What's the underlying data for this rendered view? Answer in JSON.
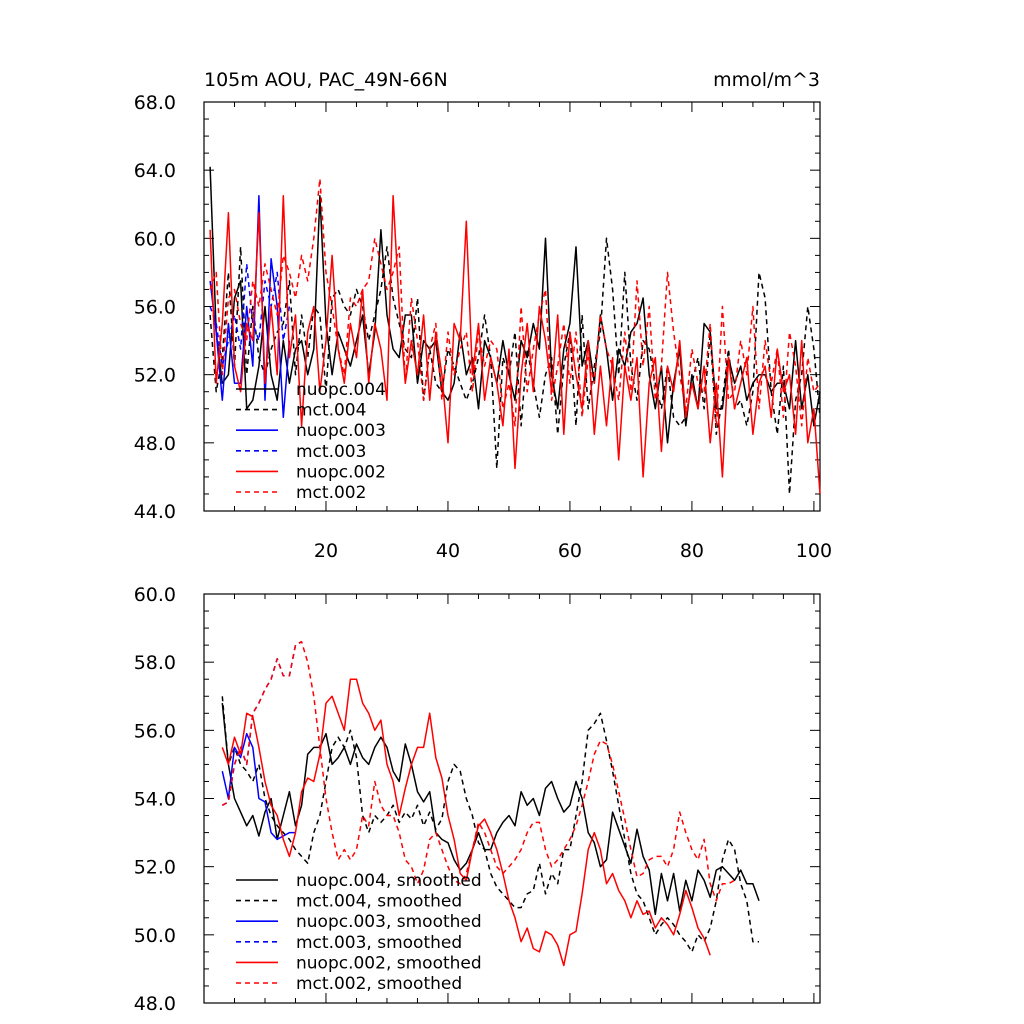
{
  "chart_data": [
    {
      "type": "line",
      "title": "105m AOU, PAC_49N-66N",
      "units": "mmol/m^3",
      "xlim": [
        0,
        101
      ],
      "ylim": [
        44,
        68
      ],
      "xticks": [
        20,
        40,
        60,
        80,
        100
      ],
      "xtick_labels": [
        "20",
        "40",
        "60",
        "80",
        "100"
      ],
      "yticks": [
        44,
        48,
        52,
        56,
        60,
        64,
        68
      ],
      "ytick_labels": [
        "44.0",
        "48.0",
        "52.0",
        "56.0",
        "60.0",
        "64.0",
        "68.0"
      ],
      "legend_position": "lower-left",
      "series": [
        {
          "name": "nuopc.004",
          "color": "#000000",
          "dash": "solid",
          "x_start": 1,
          "values": [
            64.2,
            54.5,
            51.5,
            52.0,
            56.5,
            57.5,
            50.0,
            50.5,
            52.5,
            56.0,
            52.0,
            50.5,
            54.0,
            51.5,
            53.5,
            54.0,
            52.0,
            53.5,
            62.5,
            55.0,
            52.0,
            54.5,
            53.5,
            52.5,
            54.0,
            55.5,
            52.0,
            54.5,
            60.5,
            55.5,
            53.5,
            53.0,
            55.5,
            55.5,
            51.5,
            54.0,
            53.5,
            54.0,
            51.0,
            50.5,
            51.5,
            54.5,
            52.0,
            53.0,
            50.0,
            54.0,
            53.0,
            51.5,
            54.0,
            52.0,
            50.5,
            54.0,
            53.0,
            55.0,
            53.5,
            60.0,
            52.0,
            50.0,
            53.5,
            55.0,
            59.5,
            52.5,
            54.0,
            51.5,
            55.5,
            53.5,
            50.5,
            53.5,
            52.5,
            54.5,
            55.0,
            56.5,
            52.0,
            50.0,
            52.5,
            48.0,
            51.5,
            53.5,
            49.0,
            52.0,
            50.0,
            55.0,
            54.5,
            50.0,
            50.0,
            53.0,
            51.5,
            52.5,
            50.5,
            51.5,
            52.0,
            52.0,
            51.0,
            51.5,
            51.5,
            50.0,
            54.0,
            50.0,
            52.0,
            49.0,
            51.0
          ]
        },
        {
          "name": "mct.004",
          "color": "#000000",
          "dash": "dashed",
          "x_start": 1,
          "values": [
            55.5,
            51.0,
            53.0,
            58.0,
            52.5,
            59.5,
            52.0,
            56.0,
            53.0,
            52.0,
            53.5,
            54.5,
            55.0,
            57.5,
            52.0,
            55.5,
            53.0,
            56.0,
            55.5,
            51.0,
            56.5,
            57.0,
            56.0,
            55.5,
            57.0,
            56.0,
            54.0,
            55.5,
            57.0,
            59.5,
            56.5,
            55.0,
            53.5,
            53.0,
            56.5,
            50.5,
            53.5,
            51.5,
            51.0,
            53.5,
            52.5,
            51.5,
            50.5,
            51.5,
            53.0,
            55.5,
            53.0,
            46.5,
            53.0,
            52.0,
            54.5,
            49.0,
            53.5,
            51.5,
            49.5,
            52.0,
            53.0,
            48.5,
            52.5,
            54.5,
            49.0,
            55.5,
            50.0,
            52.5,
            54.5,
            60.0,
            57.0,
            52.0,
            58.0,
            52.5,
            50.5,
            54.0,
            53.5,
            51.5,
            50.0,
            52.5,
            49.5,
            49.0,
            49.5,
            51.5,
            53.0,
            50.0,
            54.5,
            48.5,
            50.5,
            53.5,
            50.0,
            50.5,
            49.0,
            51.0,
            58.0,
            56.5,
            51.0,
            48.5,
            52.5,
            45.0,
            50.5,
            52.0,
            56.0,
            53.5,
            49.5
          ]
        },
        {
          "name": "nuopc.003",
          "color": "#0000ff",
          "dash": "solid",
          "x_start": 1,
          "values": [
            57.5,
            54.5,
            50.5,
            55.0,
            51.5,
            51.5,
            56.0,
            52.5,
            62.5,
            50.5,
            58.8,
            56.0,
            49.5,
            54.0
          ]
        },
        {
          "name": "mct.003",
          "color": "#0000ff",
          "dash": "dashed",
          "x_start": 1,
          "values": [
            56.0,
            55.0,
            52.5,
            54.0,
            55.5,
            53.5,
            58.5,
            55.0,
            54.0,
            57.5,
            56.0,
            58.0,
            54.0,
            56.0
          ]
        },
        {
          "name": "nuopc.002",
          "color": "#ff0000",
          "dash": "solid",
          "x_start": 1,
          "values": [
            60.5,
            51.5,
            55.0,
            61.5,
            52.5,
            51.0,
            55.0,
            54.0,
            61.5,
            51.5,
            56.0,
            52.0,
            62.5,
            53.0,
            55.5,
            49.0,
            54.5,
            56.0,
            51.0,
            54.0,
            59.0,
            53.5,
            51.5,
            55.0,
            53.0,
            57.0,
            51.5,
            55.0,
            53.5,
            50.5,
            62.5,
            56.0,
            51.5,
            54.0,
            52.0,
            55.5,
            50.5,
            54.5,
            52.0,
            48.0,
            55.0,
            54.0,
            61.0,
            52.0,
            55.0,
            50.5,
            53.0,
            51.5,
            49.0,
            53.5,
            46.5,
            52.0,
            55.0,
            51.0,
            56.0,
            54.0,
            51.0,
            55.5,
            48.5,
            54.5,
            52.0,
            50.0,
            54.0,
            48.5,
            52.5,
            49.0,
            53.0,
            47.0,
            52.5,
            50.5,
            53.0,
            46.0,
            51.5,
            53.0,
            47.5,
            52.5,
            51.0,
            54.0,
            49.5,
            51.5,
            50.0,
            52.5,
            48.0,
            51.5,
            46.0,
            53.0,
            50.0,
            51.5,
            53.0,
            48.5,
            51.5,
            52.5,
            49.5,
            53.5,
            51.0,
            52.0,
            48.5,
            54.0,
            48.0,
            50.0,
            45.0
          ]
        },
        {
          "name": "mct.002",
          "color": "#ff0000",
          "dash": "dashed",
          "x_start": 1,
          "values": [
            57.0,
            58.0,
            52.0,
            56.5,
            57.0,
            55.0,
            54.0,
            57.5,
            56.0,
            58.5,
            57.0,
            55.5,
            59.0,
            58.0,
            56.5,
            59.0,
            57.5,
            60.0,
            63.5,
            58.0,
            56.0,
            53.5,
            52.0,
            56.5,
            56.0,
            57.0,
            57.5,
            60.0,
            58.5,
            57.0,
            58.0,
            59.5,
            51.5,
            56.5,
            54.0,
            50.5,
            53.5,
            55.0,
            50.5,
            54.5,
            52.0,
            53.5,
            54.5,
            51.0,
            54.5,
            52.5,
            54.0,
            53.5,
            50.0,
            51.5,
            49.0,
            56.0,
            51.0,
            53.5,
            55.5,
            57.0,
            50.5,
            52.5,
            55.0,
            51.5,
            54.5,
            49.5,
            53.0,
            51.5,
            55.5,
            53.5,
            52.5,
            50.5,
            54.5,
            51.0,
            57.5,
            52.5,
            56.0,
            50.5,
            52.5,
            58.0,
            54.5,
            52.0,
            50.0,
            53.5,
            51.5,
            51.0,
            55.0,
            49.0,
            56.0,
            50.5,
            51.0,
            54.0,
            52.0,
            56.0,
            50.0,
            54.0,
            51.5,
            53.5,
            49.5,
            54.5,
            52.5,
            49.0,
            53.0,
            51.0,
            51.5
          ]
        }
      ],
      "legend": [
        "nuopc.004",
        "mct.004",
        "nuopc.003",
        "mct.003",
        "nuopc.002",
        "mct.002"
      ]
    },
    {
      "type": "line",
      "title": "",
      "xlim": [
        0,
        101
      ],
      "ylim": [
        48,
        60
      ],
      "yticks": [
        48,
        50,
        52,
        54,
        56,
        58,
        60
      ],
      "ytick_labels": [
        "48.0",
        "50.0",
        "52.0",
        "54.0",
        "56.0",
        "58.0",
        "60.0"
      ],
      "legend_position": "lower-left",
      "series": [
        {
          "name": "nuopc.004, smoothed",
          "color": "#000000",
          "dash": "solid",
          "x_start": 3,
          "values": [
            56.8,
            55.0,
            54.0,
            53.6,
            53.2,
            53.5,
            52.9,
            53.6,
            54.0,
            52.8,
            53.5,
            54.2,
            53.2,
            53.8,
            55.3,
            55.5,
            55.5,
            55.9,
            55.0,
            55.2,
            55.5,
            55.0,
            55.6,
            55.2,
            55.0,
            55.5,
            55.8,
            55.5,
            54.8,
            54.5,
            55.6,
            55.0,
            54.2,
            53.9,
            54.2,
            53.0,
            52.8,
            52.7,
            52.2,
            51.9,
            52.1,
            52.5,
            53.0,
            52.5,
            52.5,
            53.0,
            53.3,
            53.5,
            53.2,
            54.2,
            53.8,
            54.0,
            53.5,
            54.3,
            54.5,
            54.0,
            53.6,
            53.8,
            54.5,
            54.0,
            53.0,
            52.7,
            52.0,
            52.2,
            53.6,
            53.1,
            52.6,
            52.1,
            53.1,
            52.3,
            51.9,
            50.6,
            51.8,
            51.0,
            51.8,
            50.7,
            51.6,
            51.0,
            51.9,
            51.6,
            51.1,
            51.9,
            52.0,
            51.8,
            51.6,
            51.9,
            51.5,
            51.5,
            51.0
          ]
        },
        {
          "name": "mct.004, smoothed",
          "color": "#000000",
          "dash": "dashed",
          "x_start": 3,
          "values": [
            57.0,
            55.0,
            55.5,
            55.0,
            54.8,
            54.5,
            55.0,
            54.0,
            53.5,
            53.2,
            53.0,
            52.8,
            52.5,
            52.3,
            52.1,
            53.0,
            53.5,
            54.5,
            55.5,
            55.8,
            55.5,
            56.0,
            55.2,
            53.5,
            53.0,
            53.5,
            53.3,
            53.5,
            53.8,
            53.3,
            53.6,
            53.4,
            53.8,
            53.2,
            53.6,
            53.1,
            53.4,
            54.5,
            55.0,
            54.8,
            54.0,
            53.5,
            52.7,
            52.5,
            51.8,
            51.4,
            51.2,
            51.0,
            50.8,
            50.8,
            51.2,
            51.3,
            52.1,
            51.2,
            51.8,
            51.5,
            52.5,
            52.5,
            53.5,
            54.5,
            56.0,
            56.2,
            56.5,
            55.7,
            54.8,
            53.8,
            52.8,
            51.8,
            51.2,
            51.0,
            50.5,
            50.0,
            50.3,
            50.5,
            50.3,
            50.0,
            49.8,
            49.5,
            50.0,
            49.8,
            50.2,
            51.0,
            52.2,
            52.8,
            52.5,
            51.5,
            51.0,
            49.8,
            49.8
          ]
        },
        {
          "name": "nuopc.003, smoothed",
          "color": "#0000ff",
          "dash": "solid",
          "x_start": 3,
          "values": [
            54.8,
            54.0,
            55.5,
            55.2,
            55.9,
            55.5,
            54.0,
            53.9,
            53.0,
            52.8,
            52.9,
            53.0,
            53.0
          ]
        },
        {
          "name": "mct.003, smoothed",
          "color": "#0000ff",
          "dash": "dashed",
          "x_start": 3,
          "values": [
            53.8,
            53.9,
            55.0,
            55.5,
            55.0,
            56.5,
            56.8,
            57.2,
            57.5,
            58.1,
            57.6,
            57.6,
            58.5,
            58.6
          ]
        },
        {
          "name": "nuopc.002, smoothed",
          "color": "#ff0000",
          "dash": "solid",
          "x_start": 3,
          "values": [
            55.5,
            55.0,
            55.8,
            55.3,
            56.5,
            56.4,
            55.5,
            54.5,
            53.8,
            53.5,
            52.8,
            52.3,
            53.0,
            54.2,
            54.6,
            54.5,
            55.3,
            56.8,
            57.0,
            56.5,
            56.0,
            57.5,
            57.5,
            56.8,
            56.5,
            56.0,
            56.3,
            55.0,
            54.5,
            53.5,
            54.3,
            55.0,
            55.5,
            55.5,
            56.5,
            55.2,
            54.6,
            53.5,
            52.8,
            51.8,
            51.6,
            52.5,
            53.2,
            53.4,
            53.0,
            52.5,
            51.8,
            51.0,
            50.5,
            49.8,
            50.2,
            49.6,
            49.5,
            50.1,
            50.0,
            49.7,
            49.1,
            50.0,
            50.1,
            51.2,
            52.5,
            53.0,
            52.5,
            51.5,
            51.8,
            51.3,
            51.0,
            50.5,
            51.0,
            50.6,
            50.7,
            50.2,
            50.5,
            50.3,
            50.0,
            50.6,
            51.3,
            50.8,
            50.2,
            49.9,
            49.4
          ]
        },
        {
          "name": "mct.002, smoothed",
          "color": "#ff0000",
          "dash": "dashed",
          "x_start": 3,
          "values": [
            53.8,
            53.9,
            55.0,
            55.5,
            55.0,
            56.5,
            56.8,
            57.2,
            57.5,
            58.1,
            57.6,
            57.6,
            58.5,
            58.6,
            58.0,
            57.0,
            55.5,
            54.0,
            53.0,
            52.2,
            52.5,
            52.2,
            52.5,
            53.5,
            53.2,
            54.5,
            53.8,
            53.5,
            53.5,
            53.0,
            52.2,
            52.0,
            51.5,
            51.9,
            52.8,
            53.0,
            52.5,
            52.0,
            51.6,
            51.5,
            51.8,
            52.5,
            53.3,
            53.0,
            52.5,
            52.0,
            51.8,
            52.0,
            52.2,
            52.5,
            53.0,
            53.3,
            53.3,
            52.5,
            52.0,
            52.2,
            52.5,
            52.8,
            53.2,
            53.8,
            54.5,
            55.3,
            55.7,
            55.6,
            55.0,
            54.2,
            53.4,
            52.5,
            51.7,
            51.8,
            52.2,
            52.3,
            52.3,
            52.0,
            52.5,
            53.6,
            53.0,
            52.5,
            52.2,
            52.8,
            51.5,
            51.0,
            51.5,
            51.5,
            51.6
          ]
        }
      ],
      "legend": [
        "nuopc.004, smoothed",
        "mct.004, smoothed",
        "nuopc.003, smoothed",
        "mct.003, smoothed",
        "nuopc.002, smoothed",
        "mct.002, smoothed"
      ]
    }
  ]
}
